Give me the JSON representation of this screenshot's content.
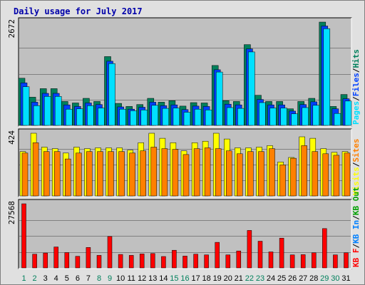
{
  "title": "Daily usage for July 2017",
  "colors": {
    "background": "#e0e0e0",
    "panel": "#c0c0c0",
    "title": "#0000aa",
    "hits": "#00805c",
    "files": "#0040ff",
    "pages": "#00e0ff",
    "visits": "#ffff00",
    "sites": "#ff8000",
    "kb_in": "#0080ff",
    "kb_out": "#00a000",
    "kb_f": "#ff0000",
    "day_weekday": "#000000",
    "day_weekend": "#00805c",
    "separator": "#000000"
  },
  "chart_data": [
    {
      "type": "bar",
      "categories": [
        "1",
        "2",
        "3",
        "4",
        "5",
        "6",
        "7",
        "8",
        "9",
        "10",
        "11",
        "12",
        "13",
        "14",
        "15",
        "16",
        "17",
        "18",
        "19",
        "20",
        "21",
        "22",
        "23",
        "24",
        "25",
        "26",
        "27",
        "28",
        "29",
        "30",
        "31"
      ],
      "weekend_days": [
        "1",
        "2",
        "8",
        "9",
        "15",
        "16",
        "22",
        "23",
        "29",
        "30"
      ],
      "ymax_label": "2672",
      "ylim": [
        0,
        2672
      ],
      "legend": [
        {
          "text": "Pages",
          "color": "#00e0ff"
        },
        {
          "text": "/",
          "color": "#000000"
        },
        {
          "text": "Files",
          "color": "#0040ff"
        },
        {
          "text": "/",
          "color": "#000000"
        },
        {
          "text": "Hits",
          "color": "#00805c"
        }
      ],
      "series": [
        {
          "name": "Hits",
          "color": "#00805c",
          "values": [
            1220,
            730,
            950,
            950,
            620,
            580,
            700,
            620,
            1780,
            570,
            490,
            540,
            700,
            600,
            640,
            500,
            590,
            580,
            1550,
            640,
            620,
            2090,
            780,
            620,
            620,
            430,
            620,
            700,
            2672,
            490,
            800
          ]
        },
        {
          "name": "Files",
          "color": "#0040ff",
          "values": [
            1100,
            600,
            830,
            830,
            530,
            490,
            580,
            540,
            1660,
            480,
            420,
            470,
            600,
            510,
            530,
            410,
            500,
            490,
            1440,
            550,
            530,
            1980,
            670,
            530,
            530,
            370,
            540,
            610,
            2570,
            430,
            690
          ]
        },
        {
          "name": "Pages",
          "color": "#00e0ff",
          "values": [
            1000,
            510,
            750,
            750,
            420,
            430,
            510,
            450,
            1600,
            420,
            380,
            400,
            520,
            440,
            450,
            340,
            420,
            400,
            1380,
            460,
            440,
            1900,
            590,
            450,
            450,
            300,
            460,
            520,
            2500,
            310,
            630
          ]
        }
      ]
    },
    {
      "type": "bar",
      "categories": [
        "1",
        "2",
        "3",
        "4",
        "5",
        "6",
        "7",
        "8",
        "9",
        "10",
        "11",
        "12",
        "13",
        "14",
        "15",
        "16",
        "17",
        "18",
        "19",
        "20",
        "21",
        "22",
        "23",
        "24",
        "25",
        "26",
        "27",
        "28",
        "29",
        "30",
        "31"
      ],
      "ymax_label": "424",
      "ylim": [
        0,
        424
      ],
      "legend": [
        {
          "text": "Visits",
          "color": "#ffff00"
        },
        {
          "text": "/",
          "color": "#000000"
        },
        {
          "text": "Sites",
          "color": "#ff8000"
        }
      ],
      "series": [
        {
          "name": "Visits",
          "color": "#ffff00",
          "values": [
            300,
            424,
            330,
            320,
            290,
            330,
            320,
            325,
            325,
            325,
            310,
            360,
            424,
            390,
            360,
            305,
            360,
            370,
            424,
            385,
            325,
            325,
            330,
            340,
            230,
            260,
            400,
            390,
            320,
            295,
            300
          ]
        },
        {
          "name": "Sites",
          "color": "#ff8000",
          "values": [
            290,
            360,
            300,
            300,
            250,
            290,
            300,
            300,
            300,
            300,
            290,
            305,
            330,
            320,
            315,
            280,
            320,
            325,
            320,
            305,
            285,
            300,
            300,
            320,
            210,
            255,
            340,
            300,
            285,
            275,
            290
          ]
        }
      ]
    },
    {
      "type": "bar",
      "categories": [
        "1",
        "2",
        "3",
        "4",
        "5",
        "6",
        "7",
        "8",
        "9",
        "10",
        "11",
        "12",
        "13",
        "14",
        "15",
        "16",
        "17",
        "18",
        "19",
        "20",
        "21",
        "22",
        "23",
        "24",
        "25",
        "26",
        "27",
        "28",
        "29",
        "30",
        "31"
      ],
      "ymax_label": "27568",
      "ylim": [
        0,
        27568
      ],
      "legend": [
        {
          "text": "KB F",
          "color": "#ff0000"
        },
        {
          "text": "/",
          "color": "#000000"
        },
        {
          "text": "KB In",
          "color": "#0080ff"
        },
        {
          "text": "/",
          "color": "#000000"
        },
        {
          "text": "KB Out",
          "color": "#00a000"
        }
      ],
      "series": [
        {
          "name": "KB F",
          "color": "#ff0000",
          "values": [
            27568,
            5900,
            6400,
            9000,
            6600,
            5000,
            8800,
            5400,
            13500,
            5800,
            5400,
            6000,
            6200,
            4900,
            7600,
            5100,
            5900,
            5600,
            11000,
            5600,
            7300,
            16100,
            11500,
            6900,
            12800,
            5600,
            5700,
            6500,
            16900,
            5600,
            6500
          ]
        }
      ]
    }
  ]
}
